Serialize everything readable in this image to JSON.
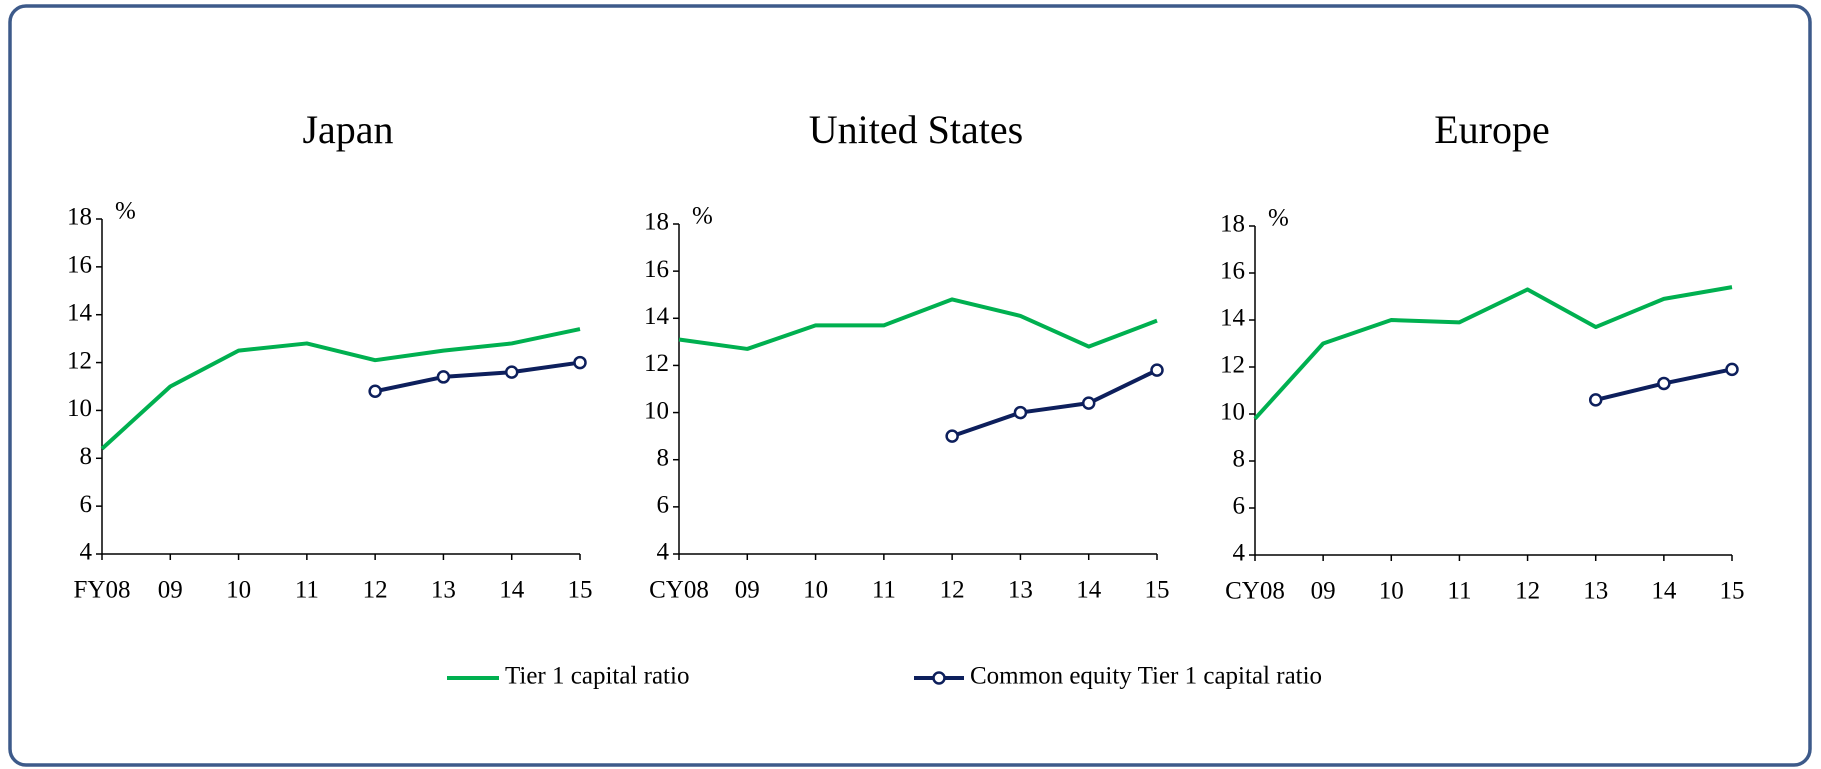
{
  "chart_data": [
    {
      "type": "line",
      "title": "Japan",
      "y_label": "%",
      "categories": [
        "FY08",
        "09",
        "10",
        "11",
        "12",
        "13",
        "14",
        "15"
      ],
      "ylim": [
        4,
        18
      ],
      "yticks": [
        4,
        6,
        8,
        10,
        12,
        14,
        16,
        18
      ],
      "grid": false,
      "series": [
        {
          "name": "Tier 1 capital ratio",
          "color": "#00b050",
          "marker": false,
          "values": [
            8.4,
            11.0,
            12.5,
            12.8,
            12.1,
            12.5,
            12.8,
            13.4
          ]
        },
        {
          "name": "Common equity Tier 1 capital ratio",
          "color": "#0d1f5c",
          "marker": true,
          "values": [
            null,
            null,
            null,
            null,
            10.8,
            11.4,
            11.6,
            12.0
          ]
        }
      ]
    },
    {
      "type": "line",
      "title": "United States",
      "y_label": "%",
      "categories": [
        "CY08",
        "09",
        "10",
        "11",
        "12",
        "13",
        "14",
        "15"
      ],
      "ylim": [
        4,
        18
      ],
      "yticks": [
        4,
        6,
        8,
        10,
        12,
        14,
        16,
        18
      ],
      "grid": false,
      "series": [
        {
          "color": "#00b050",
          "marker": false,
          "values": [
            13.1,
            12.7,
            13.7,
            13.7,
            14.8,
            14.1,
            12.8,
            13.9
          ]
        },
        {
          "color": "#0d1f5c",
          "marker": true,
          "values": [
            null,
            null,
            null,
            null,
            9.0,
            10.0,
            10.4,
            11.8
          ]
        }
      ]
    },
    {
      "type": "line",
      "title": "Europe",
      "y_label": "%",
      "categories": [
        "CY08",
        "09",
        "10",
        "11",
        "12",
        "13",
        "14",
        "15"
      ],
      "ylim": [
        4,
        18
      ],
      "yticks": [
        4,
        6,
        8,
        10,
        12,
        14,
        16,
        18
      ],
      "grid": false,
      "series": [
        {
          "color": "#00b050",
          "marker": false,
          "values": [
            9.8,
            13.0,
            14.0,
            13.9,
            15.3,
            13.7,
            14.9,
            15.4
          ]
        },
        {
          "color": "#0d1f5c",
          "marker": true,
          "values": [
            null,
            null,
            null,
            null,
            null,
            10.6,
            11.3,
            11.9
          ]
        }
      ]
    }
  ]
}
